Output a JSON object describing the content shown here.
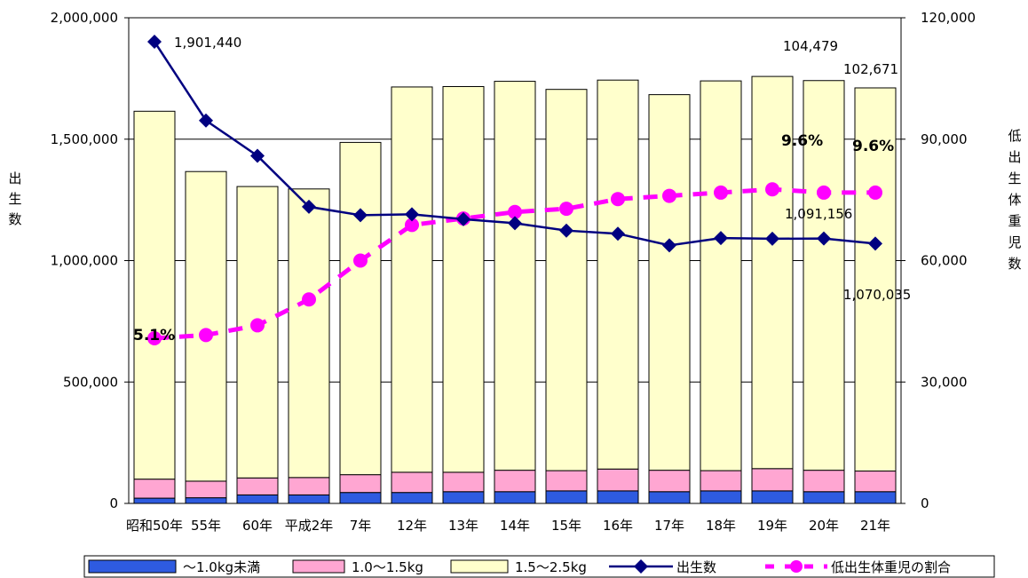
{
  "chart_data": {
    "type": "bar",
    "categories": [
      "昭和50年",
      "55年",
      "60年",
      "平成2年",
      "7年",
      "12年",
      "13年",
      "14年",
      "15年",
      "16年",
      "17年",
      "18年",
      "19年",
      "20年",
      "21年"
    ],
    "left_axis": {
      "label": "出生数",
      "ylim": [
        0,
        2000000
      ],
      "ticks": [
        "0",
        "500,000",
        "1,000,000",
        "1,500,000",
        "2,000,000"
      ]
    },
    "right_axis": {
      "label": "低出生体重児数",
      "ylim": [
        0,
        120000
      ],
      "ticks": [
        "0",
        "30,000",
        "60,000",
        "90,000",
        "120,000"
      ]
    },
    "series": [
      {
        "name": "～1.0kg未満",
        "axis": "right",
        "kind": "stacked-bar",
        "color": "#2E5BE0",
        "values": [
          1300,
          1400,
          2100,
          2100,
          2700,
          2700,
          2900,
          2900,
          3100,
          3100,
          2900,
          3100,
          3100,
          2900,
          2900
        ]
      },
      {
        "name": "1.0～1.5kg",
        "axis": "right",
        "kind": "stacked-bar",
        "color": "#FFA6D2",
        "values": [
          4700,
          4100,
          4200,
          4300,
          4400,
          5000,
          4800,
          5300,
          5000,
          5400,
          5300,
          5000,
          5500,
          5300,
          5100
        ]
      },
      {
        "name": "1.5～2.5kg",
        "axis": "right",
        "kind": "stacked-bar",
        "color": "#FFFFCC",
        "values": [
          90900,
          76500,
          72000,
          71300,
          82100,
          95200,
          95300,
          96100,
          94200,
          96100,
          92800,
          96300,
          96900,
          96279,
          94671
        ]
      },
      {
        "name": "出生数",
        "axis": "left",
        "kind": "line",
        "color": "#000080",
        "values": [
          1901440,
          1576889,
          1431577,
          1221585,
          1187064,
          1190547,
          1170662,
          1153855,
          1123610,
          1110721,
          1062530,
          1092674,
          1089818,
          1091156,
          1070035
        ]
      },
      {
        "name": "低出生体重児の割合",
        "axis": "right-pct",
        "kind": "dashed-line",
        "color": "#FF00FF",
        "values_percent": [
          5.1,
          5.2,
          5.5,
          6.3,
          7.5,
          8.6,
          8.8,
          9.0,
          9.1,
          9.4,
          9.5,
          9.6,
          9.7,
          9.6,
          9.6
        ]
      }
    ],
    "annotations": {
      "births_first": "1,901,440",
      "births_20": "1,091,156",
      "births_21": "1,070,035",
      "total_20": "104,479",
      "total_21": "102,671",
      "pct_first": "5.1%",
      "pct_20": "9.6%",
      "pct_21": "9.6%"
    },
    "legend_position": "bottom",
    "grid": true
  }
}
